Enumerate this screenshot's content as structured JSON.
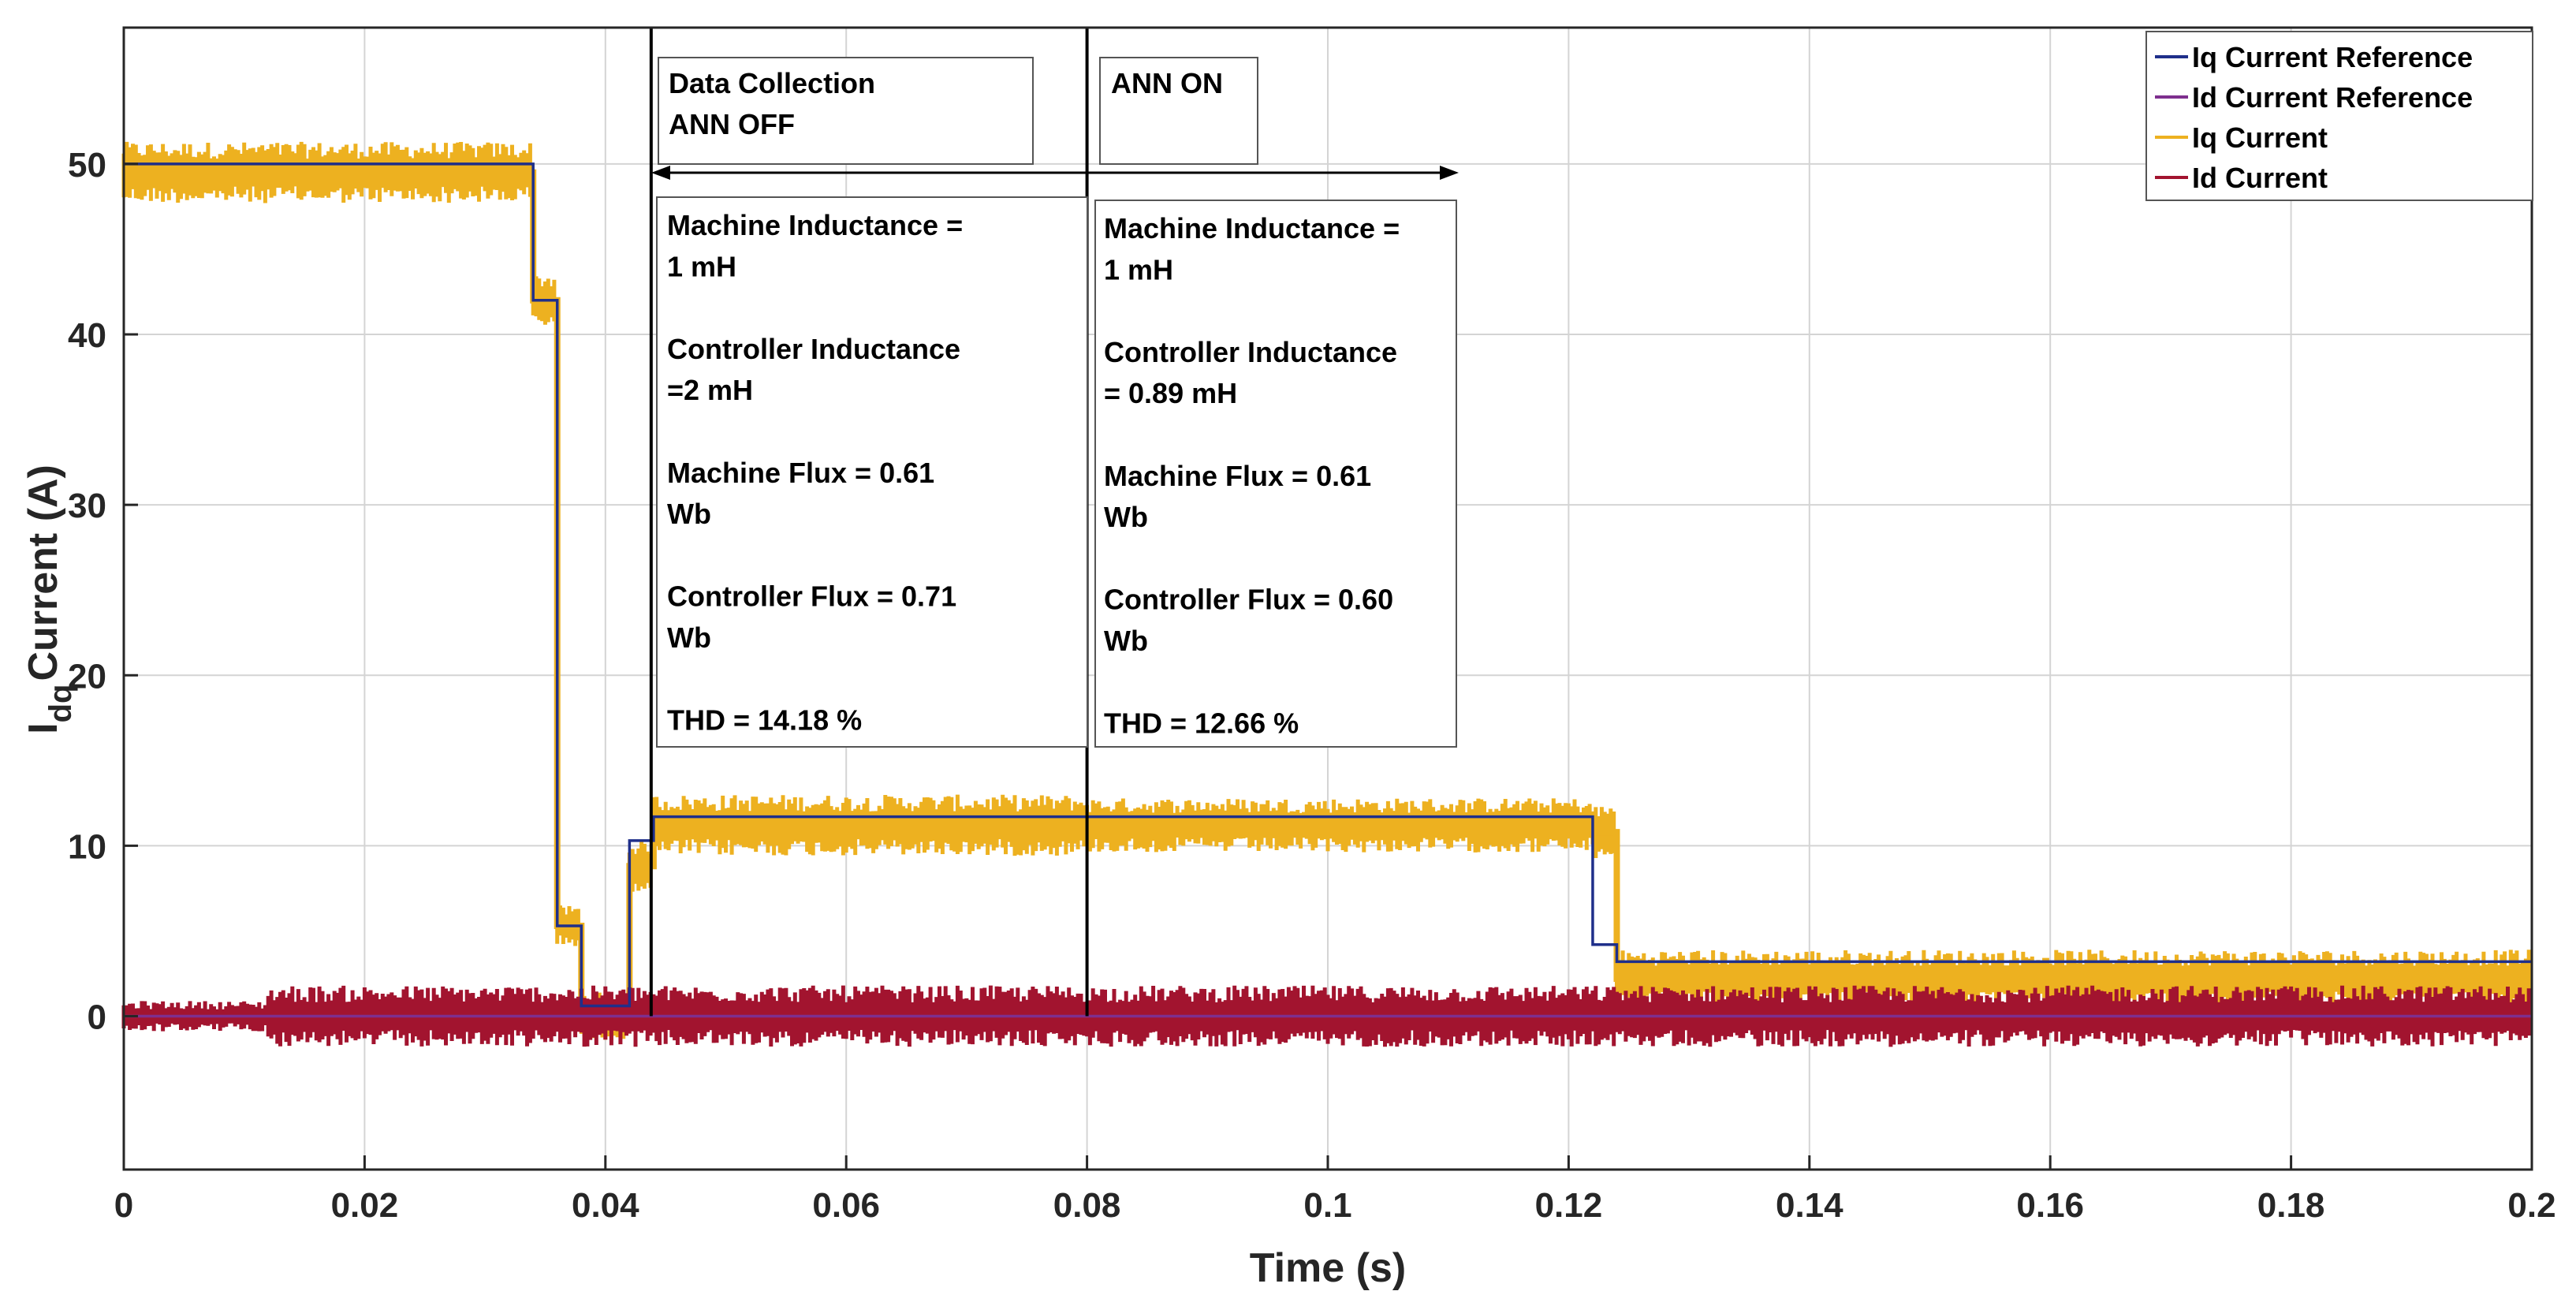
{
  "colors": {
    "iq_ref": "#1f2f8a",
    "id_ref": "#7e2f8e",
    "iq": "#edb120",
    "id": "#a2142f",
    "grid": "#d4d4d4",
    "axis": "#262626",
    "data_collection_text": "#0072bd",
    "ann_on_text": "#ff0000"
  },
  "chart_data": {
    "type": "line",
    "title": "",
    "xlabel": "Time (s)",
    "ylabel_main": "I",
    "ylabel_sub": "dq",
    "ylabel_rest": "Current (A)",
    "xlim": [
      0,
      0.2
    ],
    "ylim": [
      -9,
      58
    ],
    "xticks": [
      0,
      0.02,
      0.04,
      0.06,
      0.08,
      0.1,
      0.12,
      0.14,
      0.16,
      0.18,
      0.2
    ],
    "xtick_labels": [
      "0",
      "0.02",
      "0.04",
      "0.06",
      "0.08",
      "0.1",
      "0.12",
      "0.14",
      "0.16",
      "0.18",
      "0.2"
    ],
    "yticks": [
      0,
      10,
      20,
      30,
      40,
      50
    ],
    "ytick_labels": [
      "0",
      "10",
      "20",
      "30",
      "40",
      "50"
    ],
    "grid": true,
    "legend_position": "top-right",
    "series": [
      {
        "name": "Iq Current Reference",
        "kind": "step",
        "x": [
          0,
          0.034,
          0.036,
          0.038,
          0.042,
          0.044,
          0.08,
          0.122,
          0.124,
          0.2
        ],
        "y": [
          50,
          42,
          5.3,
          0.6,
          10.3,
          11.7,
          11.7,
          4.2,
          3.2,
          3.2
        ]
      },
      {
        "name": "Id Current Reference",
        "kind": "step",
        "x": [
          0,
          0.2
        ],
        "y": [
          0,
          0
        ]
      },
      {
        "name": "Iq Current",
        "kind": "band",
        "x": [
          0,
          0.034,
          0.036,
          0.038,
          0.042,
          0.044,
          0.08,
          0.122,
          0.124,
          0.2
        ],
        "center": [
          49.5,
          42,
          5.3,
          0,
          8.8,
          11.2,
          11.2,
          10.8,
          2.2,
          2.2
        ],
        "halfwidth": [
          1.8,
          1.6,
          1.2,
          1.4,
          1.5,
          1.8,
          1.6,
          1.6,
          1.7,
          1.7
        ]
      },
      {
        "name": "Id Current",
        "kind": "band",
        "x": [
          0,
          0.012,
          0.2
        ],
        "center": [
          0,
          0,
          0
        ],
        "halfwidth": [
          0.9,
          1.8,
          1.8
        ]
      }
    ],
    "vlines": [
      0.0438,
      0.08
    ],
    "annotations": {
      "phase1_title_line1": "Data Collection",
      "phase1_title_line2": "ANN OFF",
      "phase2_title": "ANN ON",
      "box1_lines": [
        "Machine Inductance =",
        "1 mH",
        "",
        "Controller Inductance",
        "=2 mH",
        "",
        "Machine Flux = 0.61",
        "Wb",
        "",
        "Controller Flux = 0.71",
        "Wb",
        "",
        "THD  = 14.18 %"
      ],
      "box2_lines": [
        "Machine Inductance =",
        "1 mH",
        "",
        "Controller Inductance",
        "= 0.89 mH",
        "",
        "Machine Flux = 0.61",
        "Wb",
        "",
        "Controller Flux = 0.60",
        "Wb",
        "",
        "THD  = 12.66 %"
      ]
    },
    "legend": [
      "Iq Current Reference",
      "Id Current Reference",
      "Iq Current",
      "Id Current"
    ]
  }
}
